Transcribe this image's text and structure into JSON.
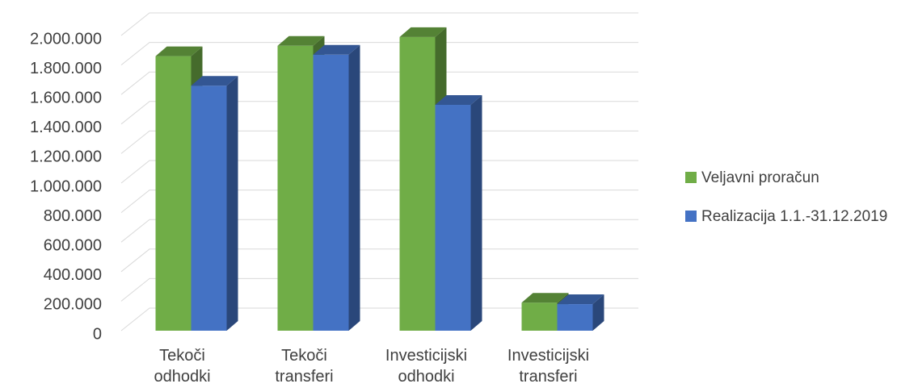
{
  "chart_data": {
    "type": "bar3d",
    "categories": [
      "Tekoči odhodki",
      "Tekoči transferi",
      "Investicijski odhodki",
      "Investicijski transferi"
    ],
    "series": [
      {
        "name": "Veljavni proračun",
        "color": "#70ad47",
        "values": [
          1860000,
          1930000,
          1990000,
          190000
        ]
      },
      {
        "name": "Realizacija 1.1.-31.12.2019",
        "color": "#4472c4",
        "values": [
          1660000,
          1870000,
          1530000,
          180000
        ]
      }
    ],
    "ylim": [
      0,
      2000000
    ],
    "yticks": [
      0,
      {
        "value": 200000,
        "label": "200.000"
      },
      {
        "value": 400000,
        "label": "400.000"
      },
      {
        "value": 600000,
        "label": "600.000"
      },
      {
        "value": 800000,
        "label": "800.000"
      },
      {
        "value": 1000000,
        "label": "1.000.000"
      },
      {
        "value": 1200000,
        "label": "1.200.000"
      },
      {
        "value": 1400000,
        "label": "1.400.000"
      },
      {
        "value": 1600000,
        "label": "1.600.000"
      },
      {
        "value": 1800000,
        "label": "1.800.000"
      },
      {
        "value": 2000000,
        "label": "2.000.000"
      }
    ],
    "grid": true,
    "legend": "right"
  }
}
